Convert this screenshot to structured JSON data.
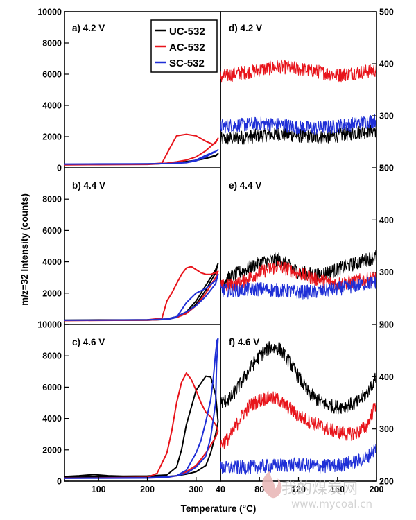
{
  "figure": {
    "ylabel": "m/z=32  Intensity (counts)",
    "xlabel": "Temperature (°C)",
    "watermark": "我的煤炭网",
    "watermark_url": "www.mycoal.cn"
  },
  "legend": [
    {
      "name": "UC-532",
      "color": "#000000"
    },
    {
      "name": "AC-532",
      "color": "#e8141b"
    },
    {
      "name": "SC-532",
      "color": "#1f2fd6"
    }
  ],
  "chart_data": [
    {
      "id": "a",
      "type": "line",
      "title": "a)  4.2 V",
      "xlim": [
        30,
        350
      ],
      "ylim": [
        0,
        10000
      ],
      "yticks": [
        0,
        2000,
        4000,
        6000,
        8000,
        10000
      ],
      "xticks": [],
      "series": [
        {
          "name": "UC-532",
          "x": [
            30,
            100,
            200,
            240,
            260,
            280,
            300,
            320,
            340,
            345,
            340,
            320,
            300,
            280,
            260,
            240,
            200,
            100,
            30
          ],
          "y": [
            220,
            230,
            250,
            280,
            320,
            380,
            470,
            600,
            750,
            900,
            800,
            600,
            480,
            400,
            330,
            280,
            240,
            220,
            210
          ]
        },
        {
          "name": "AC-532",
          "x": [
            30,
            100,
            200,
            230,
            245,
            260,
            280,
            300,
            320,
            335,
            340,
            345,
            340,
            320,
            300,
            280,
            260,
            240,
            220,
            200,
            100,
            30
          ],
          "y": [
            200,
            210,
            230,
            300,
            1200,
            2050,
            2150,
            2050,
            1700,
            1500,
            1600,
            1900,
            1650,
            1100,
            700,
            500,
            380,
            300,
            250,
            220,
            200,
            190
          ]
        },
        {
          "name": "SC-532",
          "x": [
            30,
            100,
            200,
            250,
            280,
            300,
            320,
            335,
            340,
            345,
            340,
            320,
            300,
            280,
            250,
            200,
            100,
            30
          ],
          "y": [
            240,
            250,
            260,
            280,
            350,
            500,
            800,
            1000,
            1050,
            1150,
            1050,
            700,
            450,
            330,
            280,
            250,
            240,
            230
          ]
        }
      ]
    },
    {
      "id": "b",
      "type": "line",
      "title": "b) 4.4 V",
      "xlim": [
        30,
        350
      ],
      "ylim": [
        0,
        10000
      ],
      "yticks": [
        0,
        2000,
        4000,
        6000,
        8000
      ],
      "xticks": [],
      "series": [
        {
          "name": "UC-532",
          "x": [
            30,
            100,
            200,
            240,
            260,
            280,
            300,
            320,
            340,
            345,
            340,
            320,
            300,
            280,
            260,
            240,
            200,
            100,
            30
          ],
          "y": [
            280,
            290,
            300,
            350,
            500,
            800,
            1500,
            2500,
            3500,
            3900,
            3300,
            2200,
            1300,
            700,
            450,
            320,
            280,
            270,
            260
          ]
        },
        {
          "name": "AC-532",
          "x": [
            30,
            100,
            200,
            230,
            240,
            250,
            260,
            270,
            280,
            290,
            300,
            310,
            320,
            330,
            340,
            345,
            340,
            320,
            300,
            280,
            260,
            240,
            220,
            200,
            100,
            30
          ],
          "y": [
            260,
            270,
            300,
            400,
            1500,
            2000,
            2600,
            3200,
            3600,
            3700,
            3500,
            3300,
            3200,
            3200,
            3300,
            3400,
            3000,
            2000,
            1200,
            700,
            450,
            350,
            300,
            280,
            260,
            250
          ]
        },
        {
          "name": "SC-532",
          "x": [
            30,
            100,
            200,
            240,
            260,
            280,
            300,
            320,
            340,
            345,
            340,
            320,
            300,
            280,
            260,
            240,
            200,
            100,
            30
          ],
          "y": [
            270,
            280,
            290,
            320,
            450,
            1400,
            2000,
            2300,
            2800,
            3200,
            2600,
            1800,
            1200,
            800,
            500,
            350,
            300,
            280,
            270
          ]
        }
      ]
    },
    {
      "id": "c",
      "type": "line",
      "title": "c) 4.6 V",
      "xlim": [
        30,
        350
      ],
      "ylim": [
        0,
        10000
      ],
      "yticks": [
        0,
        2000,
        4000,
        6000,
        8000,
        10000
      ],
      "xticks": [
        100,
        200,
        300
      ],
      "series": [
        {
          "name": "UC-532",
          "x": [
            30,
            60,
            90,
            120,
            150,
            200,
            240,
            260,
            270,
            280,
            300,
            320,
            330,
            340,
            345,
            340,
            330,
            320,
            300,
            280,
            260,
            240,
            200,
            100,
            30
          ],
          "y": [
            300,
            350,
            420,
            350,
            320,
            330,
            400,
            900,
            2000,
            3600,
            5800,
            6700,
            6650,
            5500,
            3800,
            3000,
            1800,
            1000,
            600,
            450,
            350,
            300,
            280,
            270,
            260
          ]
        },
        {
          "name": "AC-532",
          "x": [
            30,
            100,
            200,
            220,
            240,
            250,
            260,
            270,
            280,
            290,
            300,
            310,
            320,
            330,
            340,
            345,
            340,
            320,
            300,
            280,
            260,
            240,
            200,
            100,
            30
          ],
          "y": [
            200,
            210,
            250,
            500,
            1800,
            3200,
            5000,
            6300,
            6900,
            6500,
            5800,
            5000,
            4400,
            4100,
            3600,
            3200,
            2800,
            1800,
            1000,
            600,
            350,
            250,
            210,
            200,
            190
          ]
        },
        {
          "name": "SC-532",
          "x": [
            30,
            100,
            200,
            240,
            260,
            280,
            300,
            310,
            320,
            330,
            335,
            340,
            343,
            345,
            342,
            340,
            330,
            320,
            300,
            280,
            260,
            240,
            200,
            100,
            30
          ],
          "y": [
            180,
            190,
            200,
            250,
            350,
            700,
            1800,
            2600,
            3800,
            5200,
            6500,
            8200,
            9000,
            9100,
            7500,
            5000,
            2800,
            1600,
            900,
            500,
            350,
            280,
            220,
            200,
            190
          ]
        }
      ]
    },
    {
      "id": "d",
      "type": "line",
      "title": "d) 4.2 V",
      "xlim": [
        40,
        200
      ],
      "ylim": [
        200,
        500
      ],
      "yticks": [
        200,
        300,
        400,
        500
      ],
      "xticks": [],
      "series": [
        {
          "name": "UC-532",
          "x": [
            40,
            60,
            80,
            100,
            120,
            140,
            160,
            180,
            200
          ],
          "y": [
            255,
            258,
            262,
            265,
            262,
            258,
            262,
            268,
            272
          ]
        },
        {
          "name": "AC-532",
          "x": [
            40,
            60,
            80,
            100,
            120,
            140,
            160,
            180,
            200
          ],
          "y": [
            375,
            382,
            388,
            395,
            390,
            385,
            378,
            383,
            388
          ]
        },
        {
          "name": "SC-532",
          "x": [
            40,
            60,
            80,
            100,
            120,
            140,
            160,
            180,
            200
          ],
          "y": [
            280,
            282,
            285,
            283,
            278,
            276,
            280,
            285,
            292
          ]
        }
      ]
    },
    {
      "id": "e",
      "type": "line",
      "title": "e) 4.4 V",
      "xlim": [
        40,
        200
      ],
      "ylim": [
        200,
        500
      ],
      "yticks": [
        200,
        300,
        400,
        500
      ],
      "xticks": [],
      "series": [
        {
          "name": "UC-532",
          "x": [
            40,
            60,
            80,
            100,
            120,
            140,
            160,
            180,
            200
          ],
          "y": [
            280,
            300,
            318,
            325,
            300,
            295,
            305,
            318,
            330
          ]
        },
        {
          "name": "AC-532",
          "x": [
            40,
            60,
            80,
            100,
            120,
            140,
            160,
            180,
            200
          ],
          "y": [
            272,
            278,
            300,
            312,
            298,
            285,
            278,
            283,
            290
          ]
        },
        {
          "name": "SC-532",
          "x": [
            40,
            60,
            80,
            100,
            120,
            140,
            160,
            180,
            200
          ],
          "y": [
            265,
            266,
            268,
            265,
            262,
            263,
            268,
            275,
            282
          ]
        }
      ]
    },
    {
      "id": "f",
      "type": "line",
      "title": "f)  4.6 V",
      "xlim": [
        40,
        200
      ],
      "ylim": [
        200,
        500
      ],
      "yticks": [
        200,
        300,
        400,
        500
      ],
      "xticks": [
        40,
        80,
        120,
        160,
        200
      ],
      "series": [
        {
          "name": "UC-532",
          "x": [
            40,
            50,
            60,
            70,
            80,
            90,
            100,
            110,
            120,
            130,
            140,
            150,
            160,
            170,
            180,
            190,
            200
          ],
          "y": [
            350,
            358,
            385,
            415,
            440,
            455,
            455,
            430,
            400,
            370,
            355,
            345,
            342,
            345,
            350,
            368,
            400
          ]
        },
        {
          "name": "AC-532",
          "x": [
            40,
            50,
            60,
            70,
            80,
            90,
            100,
            110,
            120,
            130,
            140,
            150,
            160,
            170,
            180,
            190,
            200
          ],
          "y": [
            270,
            285,
            320,
            345,
            355,
            360,
            355,
            340,
            325,
            315,
            308,
            300,
            295,
            290,
            292,
            305,
            350
          ]
        },
        {
          "name": "SC-532",
          "x": [
            40,
            60,
            80,
            100,
            120,
            140,
            160,
            180,
            190,
            200
          ],
          "y": [
            225,
            226,
            228,
            230,
            232,
            228,
            230,
            238,
            245,
            265
          ]
        }
      ]
    }
  ]
}
